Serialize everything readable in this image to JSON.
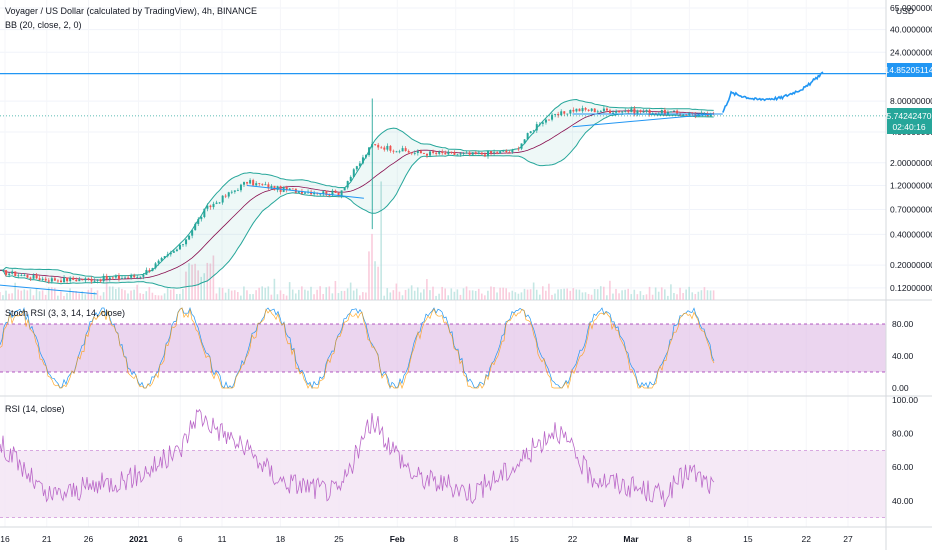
{
  "header": {
    "title": "Voyager / US Dollar (calculated by TradingView), 4h, BINANCE",
    "bb_label": "BB (20, close, 2, 0)"
  },
  "panes": {
    "stoch_label": "Stoch RSI (3, 3, 14, 14, close)",
    "rsi_label": "RSI (14, close)"
  },
  "colors": {
    "up": "#26a69a",
    "down": "#ef5350",
    "bb": "#26a69a",
    "basis": "#880e4f",
    "trend": "#2196f3",
    "projection": "#2196f3",
    "stoch_fill": "#e1bee7",
    "rsi_line": "#ba68c8"
  },
  "chart_data": [
    {
      "type": "candlestick",
      "pane": "price",
      "y_scale": "log",
      "ylim": [
        0.1,
        65.0
      ],
      "price_ticks": [
        "65.00000000",
        "40.00000000",
        "24.00000000",
        "8.00000000",
        "4.00000000",
        "2.00000000",
        "1.20000000",
        "0.70000000",
        "0.40000000",
        "0.20000000",
        "0.12000000"
      ],
      "price_tick_values": [
        65,
        40,
        24,
        8,
        4,
        2,
        1.2,
        0.7,
        0.4,
        0.2,
        0.12
      ],
      "y_unit": "USD",
      "horizontal_line": {
        "value": 14.85205114,
        "label": "14.85205114"
      },
      "current_price": {
        "value": 5.7424247,
        "label": "5.74242470",
        "countdown": "02:40:16"
      },
      "x_ticks": [
        "16",
        "21",
        "26",
        "2021",
        "6",
        "11",
        "18",
        "25",
        "Feb",
        "8",
        "15",
        "22",
        "Mar",
        "8",
        "15",
        "22",
        "27"
      ],
      "approx_closes": [
        {
          "date": "2020-12-16",
          "close": 0.17
        },
        {
          "date": "2020-12-21",
          "close": 0.145
        },
        {
          "date": "2020-12-26",
          "close": 0.145
        },
        {
          "date": "2021-01-01",
          "close": 0.155
        },
        {
          "date": "2021-01-06",
          "close": 0.3
        },
        {
          "date": "2021-01-09",
          "close": 0.7
        },
        {
          "date": "2021-01-14",
          "close": 1.3
        },
        {
          "date": "2021-01-18",
          "close": 1.1
        },
        {
          "date": "2021-01-25",
          "close": 1.0
        },
        {
          "date": "2021-01-29",
          "close": 3.0
        },
        {
          "date": "2021-02-03",
          "close": 2.5
        },
        {
          "date": "2021-02-10",
          "close": 2.4
        },
        {
          "date": "2021-02-15",
          "close": 2.6
        },
        {
          "date": "2021-02-18",
          "close": 5.0
        },
        {
          "date": "2021-02-22",
          "close": 6.6
        },
        {
          "date": "2021-03-01",
          "close": 6.4
        },
        {
          "date": "2021-03-08",
          "close": 6.0
        },
        {
          "date": "2021-03-11",
          "close": 5.74
        }
      ],
      "projection_path": [
        {
          "date": "2021-03-12",
          "value": 6.2
        },
        {
          "date": "2021-03-13",
          "value": 9.6
        },
        {
          "date": "2021-03-16",
          "value": 8.3
        },
        {
          "date": "2021-03-19",
          "value": 8.6
        },
        {
          "date": "2021-03-22",
          "value": 11.0
        },
        {
          "date": "2021-03-24",
          "value": 15.4
        }
      ]
    },
    {
      "type": "line",
      "pane": "stoch_rsi",
      "title": "Stoch RSI (3, 3, 14, 14, close)",
      "ylim": [
        0,
        100
      ],
      "y_ticks": [
        "80.00",
        "40.00",
        "0.00"
      ],
      "bands": [
        20,
        80
      ]
    },
    {
      "type": "line",
      "pane": "rsi",
      "title": "RSI (14, close)",
      "ylim": [
        25,
        100
      ],
      "y_ticks": [
        "100.00",
        "80.00",
        "60.00",
        "40.00"
      ],
      "bands": [
        30,
        70
      ],
      "approx_values": [
        {
          "date": "2020-12-16",
          "value": 72
        },
        {
          "date": "2020-12-21",
          "value": 42
        },
        {
          "date": "2020-12-26",
          "value": 48
        },
        {
          "date": "2021-01-01",
          "value": 55
        },
        {
          "date": "2021-01-06",
          "value": 70
        },
        {
          "date": "2021-01-08",
          "value": 92
        },
        {
          "date": "2021-01-14",
          "value": 70
        },
        {
          "date": "2021-01-18",
          "value": 52
        },
        {
          "date": "2021-01-25",
          "value": 45
        },
        {
          "date": "2021-01-29",
          "value": 88
        },
        {
          "date": "2021-02-03",
          "value": 55
        },
        {
          "date": "2021-02-10",
          "value": 45
        },
        {
          "date": "2021-02-15",
          "value": 60
        },
        {
          "date": "2021-02-20",
          "value": 84
        },
        {
          "date": "2021-02-24",
          "value": 55
        },
        {
          "date": "2021-03-01",
          "value": 48
        },
        {
          "date": "2021-03-05",
          "value": 43
        },
        {
          "date": "2021-03-08",
          "value": 58
        },
        {
          "date": "2021-03-11",
          "value": 47
        }
      ]
    }
  ]
}
